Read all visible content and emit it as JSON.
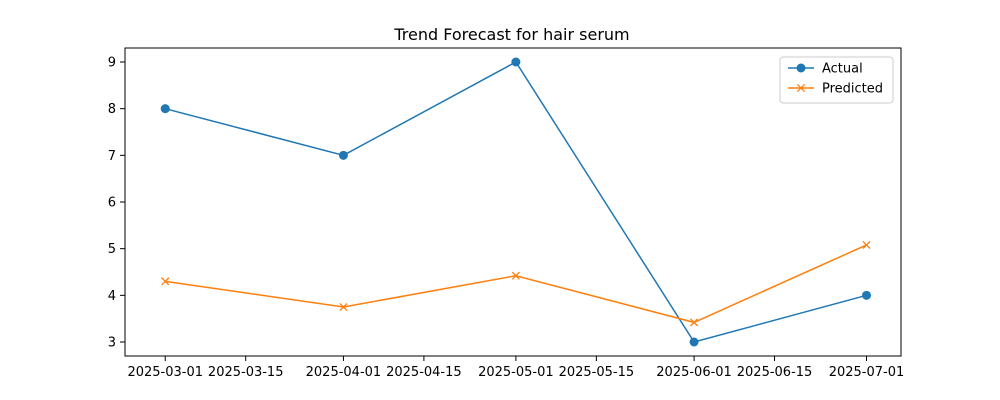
{
  "chart_data": {
    "type": "line",
    "title": "Trend Forecast for hair serum",
    "xlabel": "",
    "ylabel": "",
    "x_type": "date",
    "xlim": [
      "2025-02-22",
      "2025-07-07"
    ],
    "ylim": [
      2.7,
      9.3
    ],
    "x_ticks": [
      "2025-03-01",
      "2025-03-15",
      "2025-04-01",
      "2025-04-15",
      "2025-05-01",
      "2025-05-15",
      "2025-06-01",
      "2025-06-15",
      "2025-07-01"
    ],
    "y_ticks": [
      3,
      4,
      5,
      6,
      7,
      8,
      9
    ],
    "grid": false,
    "legend": "top-right",
    "x": [
      "2025-03-01",
      "2025-04-01",
      "2025-05-01",
      "2025-06-01",
      "2025-07-01"
    ],
    "series": [
      {
        "name": "Actual",
        "values": [
          8,
          7,
          9,
          3,
          4
        ],
        "color": "#1f77b4",
        "marker": "circle"
      },
      {
        "name": "Predicted",
        "values": [
          4.3,
          3.75,
          4.42,
          3.42,
          5.08
        ],
        "color": "#ff7f0e",
        "marker": "x"
      }
    ]
  }
}
